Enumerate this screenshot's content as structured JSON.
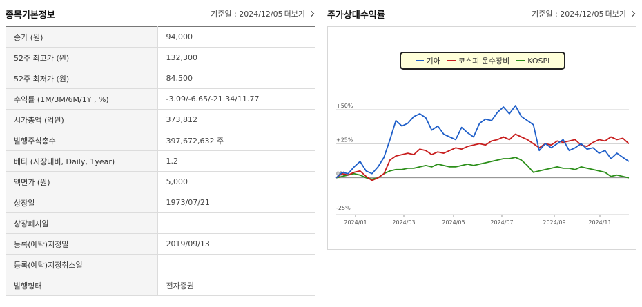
{
  "left": {
    "title": "종목기본정보",
    "base_date": "기준일 : 2024/12/05",
    "more": "더보기",
    "rows": [
      {
        "label": "종가 (원)",
        "value": "94,000"
      },
      {
        "label": "52주 최고가 (원)",
        "value": "132,300"
      },
      {
        "label": "52주 최저가 (원)",
        "value": "84,500"
      },
      {
        "label": "수익률 (1M/3M/6M/1Y , %)",
        "value": "-3.09/-6.65/-21.34/11.77"
      },
      {
        "label": "시가총액 (억원)",
        "value": "373,812"
      },
      {
        "label": "발행주식총수",
        "value": "397,672,632 주"
      },
      {
        "label": "베타 (시장대비, Daily, 1year)",
        "value": "1.2"
      },
      {
        "label": "액면가 (원)",
        "value": "5,000"
      },
      {
        "label": "상장일",
        "value": "1973/07/21"
      },
      {
        "label": "상장폐지일",
        "value": ""
      },
      {
        "label": "등록(예탁)지정일",
        "value": "2019/09/13"
      },
      {
        "label": "등록(예탁)지정취소일",
        "value": ""
      },
      {
        "label": "발행형태",
        "value": "전자증권"
      }
    ]
  },
  "right": {
    "title": "주가상대수익률",
    "base_date": "기준일 : 2024/12/05",
    "more": "더보기"
  },
  "chart_data": {
    "type": "line",
    "y_ticks": [
      "+50%",
      "+25%",
      "0%",
      "-25%"
    ],
    "ylim": [
      -25,
      50
    ],
    "x_ticks": [
      "2024/01",
      "2024/03",
      "2024/05",
      "2024/07",
      "2024/09",
      "2024/11"
    ],
    "series": [
      {
        "name": "기아",
        "color": "#1f5fc9",
        "values": [
          0,
          4,
          3,
          8,
          12,
          5,
          3,
          8,
          15,
          28,
          42,
          38,
          40,
          45,
          47,
          44,
          35,
          38,
          32,
          30,
          28,
          37,
          33,
          30,
          40,
          43,
          42,
          48,
          52,
          47,
          53,
          45,
          42,
          39,
          20,
          25,
          22,
          25,
          28,
          20,
          22,
          25,
          21,
          22,
          18,
          20,
          14,
          18,
          15,
          12
        ]
      },
      {
        "name": "코스피 운수장비",
        "color": "#c81e1e",
        "values": [
          0,
          3,
          2,
          4,
          5,
          1,
          -2,
          0,
          3,
          13,
          16,
          17,
          18,
          17,
          21,
          20,
          17,
          19,
          18,
          20,
          22,
          21,
          23,
          24,
          25,
          24,
          27,
          28,
          30,
          28,
          32,
          30,
          28,
          25,
          22,
          25,
          24,
          27,
          26,
          27,
          28,
          24,
          23,
          26,
          28,
          27,
          30,
          28,
          29,
          25
        ]
      },
      {
        "name": "KOSPI",
        "color": "#2c8f1a",
        "values": [
          0,
          1,
          2,
          3,
          2,
          0,
          -1,
          0,
          3,
          5,
          6,
          6,
          7,
          7,
          8,
          9,
          8,
          10,
          9,
          8,
          8,
          9,
          10,
          9,
          10,
          11,
          12,
          13,
          14,
          14,
          15,
          13,
          9,
          4,
          5,
          6,
          7,
          8,
          7,
          7,
          6,
          8,
          7,
          6,
          5,
          4,
          1,
          2,
          1,
          0
        ]
      }
    ]
  }
}
